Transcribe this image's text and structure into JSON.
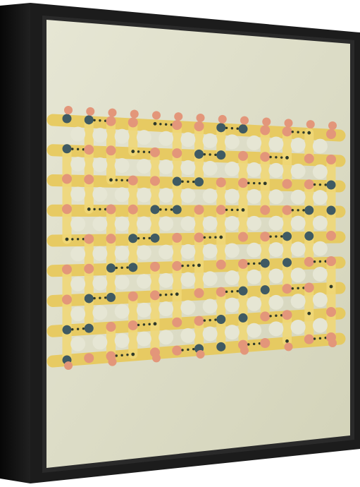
{
  "artwork": {
    "subject": "framed-abstract-dot-pattern",
    "colors": {
      "background": "#ffffff",
      "frame_front": "#1c1c1c",
      "frame_side": "#0d0d0d",
      "frame_edge": "#2a2a2a",
      "canvas_light": "#e6e6d4",
      "canvas_dark": "#d3d3b9",
      "band_yellow": "#e8c95a",
      "band_yellow_light": "#f0d878",
      "circle_salmon": "#e3967a",
      "circle_slate": "#3f5a63",
      "dot_dark": "#2f3a2a"
    }
  }
}
